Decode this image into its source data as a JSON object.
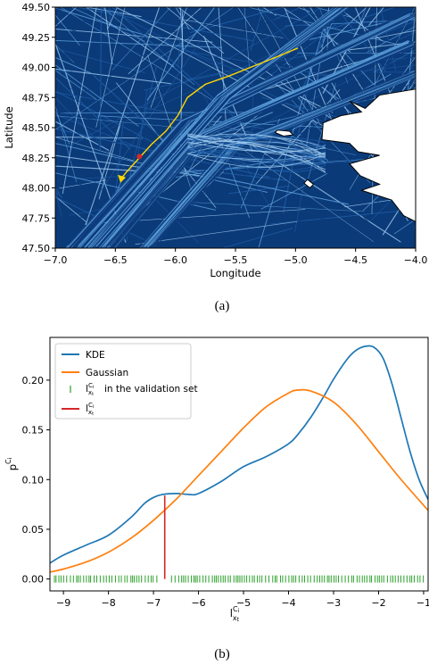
{
  "chart_data": [
    {
      "panel": "a",
      "type": "line",
      "caption": "(a)",
      "xlabel": "Longitude",
      "ylabel": "Latitude",
      "xlim": [
        -7.0,
        -4.0
      ],
      "ylim": [
        47.5,
        49.5
      ],
      "x_ticks": [
        "−7.0",
        "−6.5",
        "−6.0",
        "−5.5",
        "−5.0",
        "−4.5",
        "−4.0"
      ],
      "y_ticks": [
        "47.50",
        "47.75",
        "48.00",
        "48.25",
        "48.50",
        "48.75",
        "49.00",
        "49.25",
        "49.50"
      ],
      "grid": false,
      "series": [
        {
          "color": "#ffd700",
          "x": [
            -4.98,
            -5.15,
            -5.35,
            -5.55,
            -5.75,
            -5.9,
            -5.98,
            -6.08,
            -6.2,
            -6.3,
            -6.4,
            -6.45
          ],
          "y": [
            49.16,
            49.09,
            49.01,
            48.93,
            48.86,
            48.75,
            48.6,
            48.47,
            48.36,
            48.25,
            48.14,
            48.08
          ]
        }
      ],
      "colors": {
        "track_dark": "#0d3b7a",
        "track_mid": "#1f5fa8",
        "track_light": "#5b9fdb",
        "track_pale": "#9ecbf0",
        "highlight": "#ffd700",
        "marker": "#d62728",
        "land": "#ffffff"
      }
    },
    {
      "panel": "b",
      "type": "line",
      "caption": "(b)",
      "xlabel": "l_{x_t}^{C_i}",
      "ylabel": "p^{C_i}",
      "xlim": [
        -9.3,
        -0.9
      ],
      "ylim": [
        -0.012,
        0.243
      ],
      "x_ticks": [
        "−9",
        "−8",
        "−7",
        "−6",
        "−5",
        "−4",
        "−3",
        "−2",
        "−1"
      ],
      "y_ticks": [
        "0.00",
        "0.05",
        "0.10",
        "0.15",
        "0.20"
      ],
      "legend_position": "top-left",
      "legend": [
        "KDE",
        "Gaussian",
        "in the validation set"
      ],
      "series": [
        {
          "name": "KDE",
          "color": "#1f77b4",
          "x": [
            -9.3,
            -9.0,
            -8.5,
            -8.0,
            -7.5,
            -7.2,
            -7.0,
            -6.8,
            -6.5,
            -6.2,
            -6.0,
            -5.5,
            -5.0,
            -4.5,
            -4.0,
            -3.8,
            -3.5,
            -3.2,
            -3.0,
            -2.7,
            -2.5,
            -2.3,
            -2.1,
            -1.9,
            -1.7,
            -1.5,
            -1.3,
            -1.1,
            -0.9
          ],
          "y": [
            0.016,
            0.024,
            0.034,
            0.044,
            0.062,
            0.076,
            0.082,
            0.085,
            0.086,
            0.085,
            0.086,
            0.098,
            0.113,
            0.123,
            0.136,
            0.145,
            0.163,
            0.185,
            0.201,
            0.221,
            0.23,
            0.234,
            0.233,
            0.222,
            0.196,
            0.162,
            0.128,
            0.1,
            0.08
          ]
        },
        {
          "name": "Gaussian",
          "color": "#ff7f0e",
          "x": [
            -9.3,
            -9.0,
            -8.5,
            -8.0,
            -7.5,
            -7.0,
            -6.5,
            -6.0,
            -5.5,
            -5.0,
            -4.5,
            -4.0,
            -3.8,
            -3.5,
            -3.0,
            -2.5,
            -2.0,
            -1.5,
            -0.9
          ],
          "y": [
            0.007,
            0.01,
            0.017,
            0.027,
            0.041,
            0.059,
            0.08,
            0.104,
            0.128,
            0.152,
            0.173,
            0.187,
            0.19,
            0.189,
            0.178,
            0.156,
            0.128,
            0.1,
            0.069
          ]
        },
        {
          "name": "l_{x_t}^{C_i}",
          "color": "#d62728",
          "x": [
            -6.75,
            -6.75
          ],
          "y": [
            0.0,
            0.084
          ]
        }
      ],
      "validation_rug": {
        "color": "#2ca02c",
        "y": 0.0,
        "segments": [
          [
            -9.2,
            -6.9
          ],
          [
            -6.6,
            -1.0
          ]
        ]
      }
    }
  ]
}
